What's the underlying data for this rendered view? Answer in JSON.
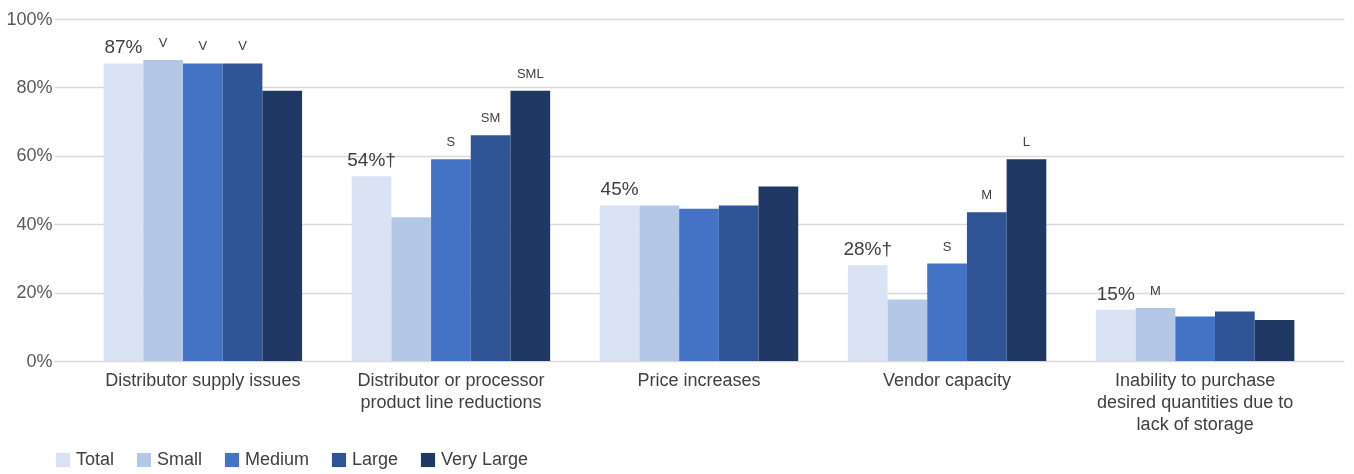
{
  "chart_data": {
    "type": "bar",
    "categories": [
      "Distributor supply issues",
      "Distributor or processor\nproduct line reductions",
      "Price increases",
      "Vendor capacity",
      "Inability to purchase\ndesired quantities due to\nlack of storage"
    ],
    "series": [
      {
        "name": "Total",
        "color": "#dae3f3",
        "values": [
          87,
          54,
          45.5,
          28,
          15
        ],
        "value_labels": [
          "87%",
          "54%†",
          "45%",
          "28%†",
          "15%"
        ]
      },
      {
        "name": "Small",
        "color": "#b4c7e7",
        "values": [
          88,
          42,
          45.5,
          18,
          15.5
        ],
        "value_labels": [
          "V",
          null,
          null,
          null,
          "M"
        ]
      },
      {
        "name": "Medium",
        "color": "#4472c4",
        "values": [
          87,
          59,
          44.5,
          28.5,
          13
        ],
        "value_labels": [
          "V",
          "S",
          null,
          "S",
          null
        ]
      },
      {
        "name": "Large",
        "color": "#2f5597",
        "values": [
          87,
          66,
          45.5,
          43.5,
          14.5
        ],
        "value_labels": [
          "V",
          "SM",
          null,
          "M",
          null
        ]
      },
      {
        "name": "Very Large",
        "color": "#203864",
        "values": [
          79,
          79,
          51,
          59,
          12
        ],
        "value_labels": [
          null,
          "SML",
          null,
          "L",
          null
        ]
      }
    ],
    "ylim": [
      0,
      100
    ],
    "yticks": [
      {
        "value": 0,
        "label": "0%"
      },
      {
        "value": 20,
        "label": "20%"
      },
      {
        "value": 40,
        "label": "40%"
      },
      {
        "value": 60,
        "label": "60%"
      },
      {
        "value": 80,
        "label": "80%"
      },
      {
        "value": 100,
        "label": "100%"
      }
    ],
    "grid": "y",
    "legend": "bottom"
  }
}
